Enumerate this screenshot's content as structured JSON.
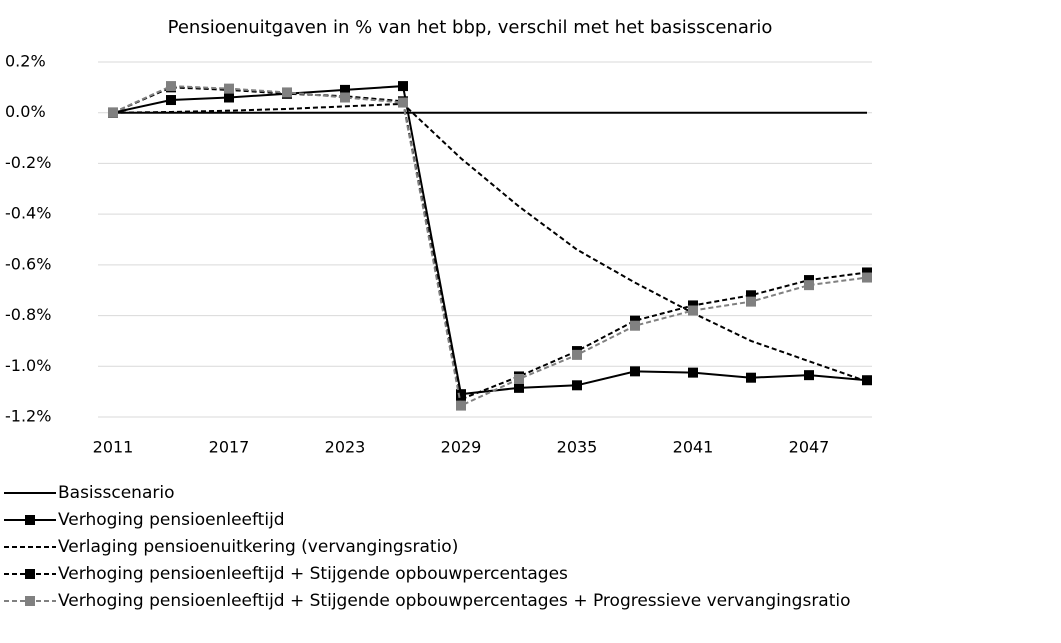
{
  "chart_data": {
    "type": "line",
    "title": "Pensioenuitgaven in % van het bbp, verschil met het basisscenario",
    "x": [
      2011,
      2014,
      2017,
      2020,
      2023,
      2026,
      2029,
      2032,
      2035,
      2038,
      2041,
      2044,
      2047,
      2050
    ],
    "xlim": [
      2011,
      2050
    ],
    "xticks": [
      2011,
      2017,
      2023,
      2029,
      2035,
      2041,
      2047
    ],
    "ylim": [
      -1.2,
      0.2
    ],
    "yticks": [
      {
        "value": 0.2,
        "label": "0.2%"
      },
      {
        "value": 0,
        "label": "0.0%"
      },
      {
        "value": -0.2,
        "label": "-0.2%"
      },
      {
        "value": -0.4,
        "label": "-0.4%"
      },
      {
        "value": -0.6,
        "label": "-0.6%"
      },
      {
        "value": -0.8,
        "label": "-0.8%"
      },
      {
        "value": -1.0,
        "label": "-1.0%"
      },
      {
        "value": -1.2,
        "label": "-1.2%"
      }
    ],
    "grid": true,
    "legend": "bottom",
    "series": [
      {
        "name": "Basisscenario",
        "color": "#000000",
        "dash": "solid",
        "values": [
          0,
          0,
          0,
          0,
          0,
          0,
          0,
          0,
          0,
          0,
          0,
          0,
          0,
          0
        ]
      },
      {
        "name": "Verhoging pensioenleeftijd",
        "color": "#000000",
        "dash": "solid",
        "marker": "square",
        "values": [
          0,
          0.05,
          0.06,
          0.075,
          0.09,
          0.105,
          -1.11,
          -1.085,
          -1.075,
          -1.02,
          -1.025,
          -1.045,
          -1.035,
          -1.055
        ]
      },
      {
        "name": "Verlaging pensioenuitkering (vervangingsratio)",
        "color": "#000000",
        "dash": "dashed",
        "values": [
          0,
          0.003,
          0.008,
          0.015,
          0.025,
          0.035,
          -0.18,
          -0.37,
          -0.54,
          -0.67,
          -0.79,
          -0.9,
          -0.98,
          -1.06
        ]
      },
      {
        "name": "Verhoging pensioenleeftijd + Stijgende opbouwpercentages",
        "color": "#000000",
        "dash": "dashed",
        "marker": "square",
        "values": [
          0,
          0.1,
          0.09,
          0.075,
          0.065,
          0.045,
          -1.13,
          -1.04,
          -0.94,
          -0.82,
          -0.76,
          -0.72,
          -0.66,
          -0.63
        ]
      },
      {
        "name": "Verhoging pensioenleeftijd + Stijgende opbouwpercentages + Progressieve vervangingsratio",
        "color": "#808080",
        "dash": "dashed",
        "marker": "square",
        "values": [
          0,
          0.105,
          0.095,
          0.08,
          0.06,
          0.04,
          -1.155,
          -1.05,
          -0.955,
          -0.84,
          -0.78,
          -0.745,
          -0.68,
          -0.65
        ]
      }
    ]
  }
}
